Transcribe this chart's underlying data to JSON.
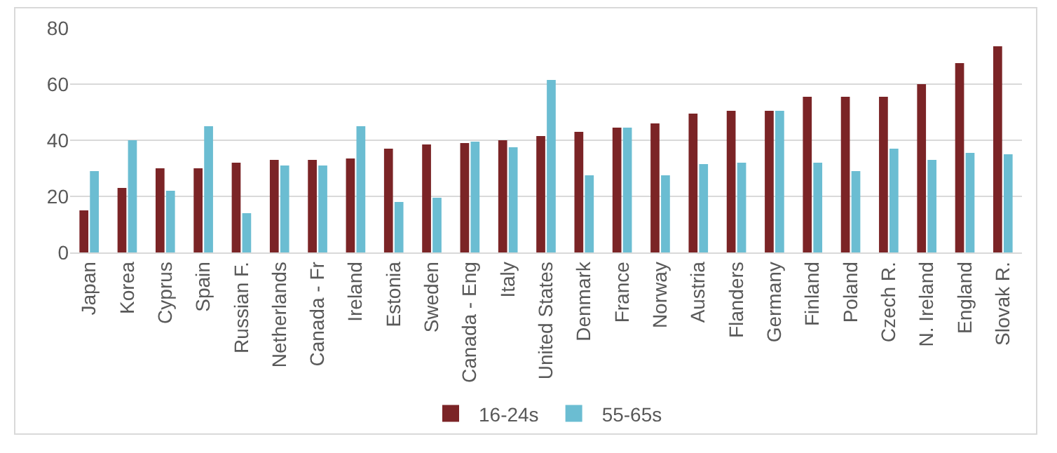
{
  "chart_data": {
    "type": "bar",
    "categories": [
      "Japan",
      "Korea",
      "Cyprus",
      "Spain",
      "Russian F.",
      "Netherlands",
      "Canada - Fr",
      "Ireland",
      "Estonia",
      "Sweden",
      "Canada - Eng",
      "Italy",
      "United States",
      "Denmark",
      "France",
      "Norway",
      "Austria",
      "Flanders",
      "Germany",
      "Finland",
      "Poland",
      "Czech R.",
      "N. Ireland",
      "England",
      "Slovak R."
    ],
    "series": [
      {
        "name": "16-24s",
        "color": "#7b2426",
        "values": [
          15,
          23,
          30,
          30,
          32,
          33,
          33,
          33.5,
          37,
          38.5,
          39,
          40,
          41.5,
          43,
          44.5,
          46,
          49.5,
          50.5,
          50.5,
          55.5,
          55.5,
          55.5,
          60,
          67.5,
          73.5
        ]
      },
      {
        "name": "55-65s",
        "color": "#6bbdd2",
        "values": [
          29,
          40,
          22,
          45,
          14,
          31,
          31,
          45,
          18,
          19.5,
          39.5,
          37.5,
          61.5,
          27.5,
          44.5,
          27.5,
          31.5,
          32,
          50.5,
          32,
          29,
          37,
          33,
          35.5,
          35
        ]
      }
    ],
    "ylim": [
      0,
      80
    ],
    "yticks": [
      0,
      20,
      40,
      60,
      80
    ],
    "grid": "y",
    "legend": "bottom"
  }
}
